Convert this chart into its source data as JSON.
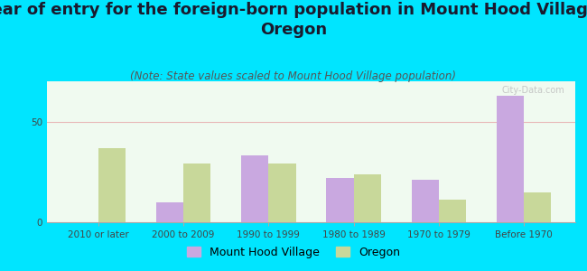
{
  "title": "Year of entry for the foreign-born population in Mount Hood Village,\nOregon",
  "subtitle": "(Note: State values scaled to Mount Hood Village population)",
  "categories": [
    "2010 or later",
    "2000 to 2009",
    "1990 to 1999",
    "1980 to 1989",
    "1970 to 1979",
    "Before 1970"
  ],
  "mount_hood_values": [
    0,
    10,
    33,
    22,
    21,
    63
  ],
  "oregon_values": [
    37,
    29,
    29,
    24,
    11,
    15
  ],
  "mount_hood_color": "#c9a8e0",
  "oregon_color": "#c8d89a",
  "background_outer": "#00e5ff",
  "background_chart": "#f0faf0",
  "ylim": [
    0,
    70
  ],
  "yticks": [
    0,
    50
  ],
  "grid_color": "#e8b8b8",
  "title_fontsize": 13,
  "subtitle_fontsize": 8.5,
  "tick_fontsize": 7.5,
  "legend_fontsize": 9,
  "watermark": "City-Data.com"
}
